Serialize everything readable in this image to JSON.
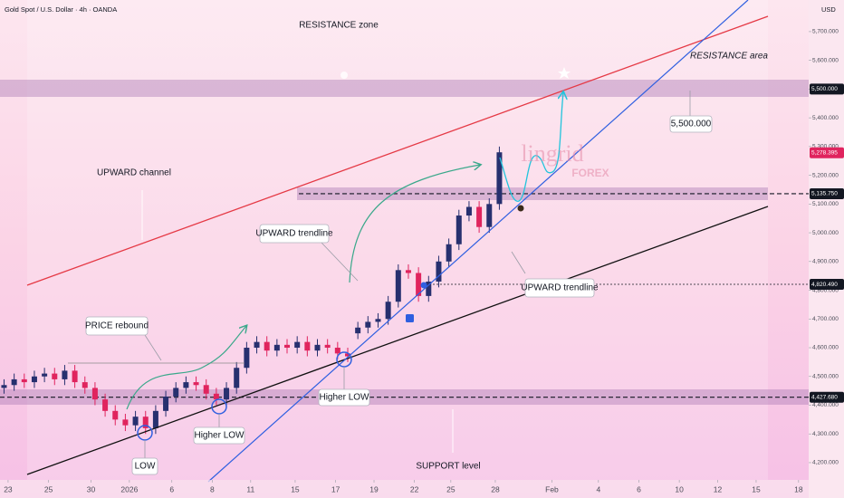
{
  "header": {
    "symbol": "Gold Spot / U.S. Dollar · 4h · OANDA",
    "currency": "USD"
  },
  "chart_data": {
    "type": "candlestick",
    "x": [
      1,
      3.5,
      6,
      8.5,
      11,
      13.5,
      16,
      18.5,
      21,
      23.5,
      26,
      28.5,
      31,
      33.5,
      36,
      38.5,
      41,
      43.5,
      46,
      48.5,
      51,
      53.5,
      56,
      58.5,
      61,
      63.5,
      66,
      68.5,
      71,
      73.5,
      76,
      78.5,
      81,
      83.5,
      86,
      88.5,
      91,
      93.5,
      96,
      98.5,
      101,
      103.5,
      106,
      108.5,
      111,
      113.5,
      116,
      118.5,
      121,
      123.5
    ],
    "open": [
      4460,
      4470,
      4490,
      4480,
      4500,
      4510,
      4490,
      4520,
      4480,
      4460,
      4420,
      4380,
      4350,
      4330,
      4360,
      4320,
      4380,
      4430,
      4460,
      4480,
      4470,
      4440,
      4420,
      4460,
      4530,
      4600,
      4620,
      4590,
      4610,
      4600,
      4620,
      4590,
      4610,
      4600,
      4580,
      4650,
      4670,
      4690,
      4700,
      4760,
      4870,
      4860,
      4780,
      4830,
      4900,
      4960,
      5060,
      5090,
      5020,
      5100
    ],
    "high": [
      4490,
      4510,
      4510,
      4520,
      4530,
      4530,
      4540,
      4540,
      4500,
      4480,
      4440,
      4400,
      4370,
      4380,
      4380,
      4400,
      4450,
      4480,
      4500,
      4500,
      4490,
      4460,
      4480,
      4550,
      4620,
      4640,
      4640,
      4630,
      4630,
      4640,
      4640,
      4630,
      4630,
      4620,
      4600,
      4690,
      4710,
      4720,
      4780,
      4890,
      4890,
      4880,
      4850,
      4920,
      4980,
      5080,
      5110,
      5110,
      5120,
      5300
    ],
    "low": [
      4440,
      4450,
      4460,
      4460,
      4480,
      4470,
      4470,
      4460,
      4440,
      4400,
      4360,
      4330,
      4310,
      4310,
      4300,
      4300,
      4360,
      4410,
      4440,
      4450,
      4420,
      4400,
      4400,
      4440,
      4510,
      4580,
      4570,
      4570,
      4580,
      4580,
      4570,
      4570,
      4580,
      4560,
      4550,
      4630,
      4650,
      4670,
      4680,
      4740,
      4840,
      4760,
      4760,
      4810,
      4880,
      4940,
      5040,
      5000,
      5000,
      5080
    ],
    "close": [
      4470,
      4490,
      4480,
      4500,
      4510,
      4490,
      4520,
      4480,
      4460,
      4420,
      4380,
      4350,
      4330,
      4360,
      4320,
      4380,
      4430,
      4460,
      4480,
      4470,
      4440,
      4420,
      4460,
      4530,
      4600,
      4620,
      4590,
      4610,
      4600,
      4620,
      4590,
      4610,
      4600,
      4580,
      4570,
      4670,
      4690,
      4700,
      4760,
      4870,
      4860,
      4780,
      4830,
      4900,
      4960,
      5060,
      5090,
      5020,
      5100,
      5280
    ],
    "up_color": "#27306f",
    "down_color": "#e0245e",
    "xlim": [
      0,
      200
    ],
    "xticks": [
      {
        "value": 2,
        "label": "23"
      },
      {
        "value": 12,
        "label": "25"
      },
      {
        "value": 22.5,
        "label": "30"
      },
      {
        "value": 32,
        "label": "2026"
      },
      {
        "value": 42.5,
        "label": "6"
      },
      {
        "value": 52.5,
        "label": "8"
      },
      {
        "value": 62,
        "label": "11"
      },
      {
        "value": 73,
        "label": "15"
      },
      {
        "value": 83,
        "label": "17"
      },
      {
        "value": 92.5,
        "label": "19"
      },
      {
        "value": 102.5,
        "label": "22"
      },
      {
        "value": 111.5,
        "label": "25"
      },
      {
        "value": 122.5,
        "label": "28"
      },
      {
        "value": 136.5,
        "label": "Feb"
      },
      {
        "value": 148,
        "label": "4"
      },
      {
        "value": 158,
        "label": "6"
      },
      {
        "value": 168,
        "label": "10"
      },
      {
        "value": 177.5,
        "label": "12"
      },
      {
        "value": 187,
        "label": "15"
      },
      {
        "value": 197.5,
        "label": "18"
      }
    ],
    "ylim": [
      4140,
      5810
    ],
    "yticks": [
      {
        "value": 4200,
        "label": "4,200.000"
      },
      {
        "value": 4300,
        "label": "4,300.000"
      },
      {
        "value": 4400,
        "label": "4,400.000"
      },
      {
        "value": 4500,
        "label": "4,500.000"
      },
      {
        "value": 4600,
        "label": "4,600.000"
      },
      {
        "value": 4700,
        "label": "4,700.000"
      },
      {
        "value": 4800,
        "label": "4,800.000"
      },
      {
        "value": 4900,
        "label": "4,900.000"
      },
      {
        "value": 5000,
        "label": "5,000.000"
      },
      {
        "value": 5100,
        "label": "5,100.000"
      },
      {
        "value": 5200,
        "label": "5,200.000"
      },
      {
        "value": 5300,
        "label": "5,300.000"
      },
      {
        "value": 5400,
        "label": "5,400.000"
      },
      {
        "value": 5500,
        "label": "5,500.000"
      },
      {
        "value": 5600,
        "label": "5,600.000"
      },
      {
        "value": 5700,
        "label": "5,700.000"
      }
    ],
    "price_tags": [
      {
        "value": 5500,
        "label": "5,500.000",
        "color": "#131722",
        "line": "none"
      },
      {
        "value": 5278.395,
        "label": "5,278.395",
        "color": "#e0245e",
        "line": "none"
      },
      {
        "value": 5135.75,
        "label": "5,135.750",
        "color": "#131722",
        "line": "dashed"
      },
      {
        "value": 4820.49,
        "label": "4,820.490",
        "color": "#131722",
        "line": "dotted"
      },
      {
        "value": 4427.68,
        "label": "4,427.680",
        "color": "#131722",
        "line": "dashed"
      }
    ],
    "annotations": [
      "RESISTANCE zone",
      "RESISTANCE area",
      "UPWARD channel",
      "UPWARD trendline",
      "PRICE rebound",
      "Higher LOW",
      "Higher LOW",
      "LOW",
      "UPWARD trendline",
      "SUPPORT level",
      "5,500.000"
    ],
    "watermark": [
      "lingrid",
      "FOREX"
    ]
  }
}
